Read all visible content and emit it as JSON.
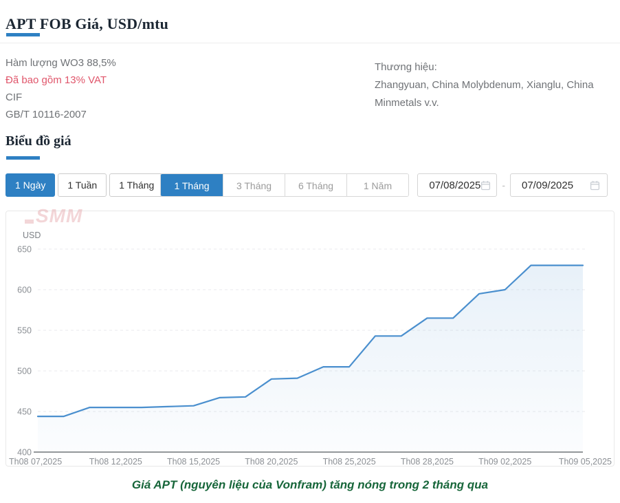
{
  "header": {
    "title": "APT FOB Giá, USD/mtu",
    "specs": [
      {
        "text": "Hàm lượng WO3 88,5%"
      },
      {
        "text": "Đã bao gồm 13% VAT"
      },
      {
        "text": "CIF"
      },
      {
        "text": "GB/T 10116-2007"
      }
    ],
    "brands_label": "Thương hiệu:",
    "brands_line1": "Zhangyuan, China Molybdenum, Xianglu, China",
    "brands_line2": "Minmetals v.v."
  },
  "section": {
    "chart_heading": "Biểu đồ giá"
  },
  "controls": {
    "frequency_tabs": [
      {
        "label": "1 Ngày",
        "active": true
      },
      {
        "label": "1 Tuần",
        "active": false
      },
      {
        "label": "1 Tháng",
        "active": false
      }
    ],
    "range_tabs": [
      {
        "label": "1 Tháng",
        "active": true
      },
      {
        "label": "3 Tháng",
        "active": false
      },
      {
        "label": "6 Tháng",
        "active": false
      },
      {
        "label": "1 Năm",
        "active": false
      }
    ],
    "date_from": "07/08/2025",
    "date_separator": "-",
    "date_to": "07/09/2025"
  },
  "watermark": "SMM",
  "caption": "Giá APT (nguyên liệu của Vonfram) tăng nóng trong 2 tháng qua",
  "colors": {
    "accent_blue": "#2e80c3",
    "line_blue": "#4a8fce",
    "spec_red": "#e0566b",
    "caption_green": "#17663a",
    "grid_gray": "#eaeaec",
    "axis_gray": "#55595e",
    "tick_gray": "#8b8f94"
  },
  "chart_data": {
    "type": "area",
    "unit_label": "USD",
    "ylim": [
      400,
      650
    ],
    "yticks": [
      650,
      600,
      550,
      500,
      450,
      400
    ],
    "grid": "dashed horizontal gridlines, solid bottom axis at 400",
    "legend": "none",
    "num_points": 22,
    "x_tick_labels": [
      "Th08 07,2025",
      "Th08 12,2025",
      "Th08 15,2025",
      "Th08 20,2025",
      "Th08 25,2025",
      "Th08 28,2025",
      "Th09 02,2025",
      "Th09 05,2025"
    ],
    "tick_indices": [
      0,
      3,
      6,
      9,
      12,
      15,
      18,
      21
    ],
    "values": [
      444,
      444,
      455,
      455,
      455,
      456,
      457,
      467,
      468,
      490,
      491,
      505,
      505,
      543,
      543,
      565,
      565,
      595,
      600,
      630,
      630,
      630
    ],
    "line_color": "#4a8fce",
    "area_fill": "vertical gradient rgba(74,143,206,0.13) to rgba(74,143,206,0.02)"
  }
}
